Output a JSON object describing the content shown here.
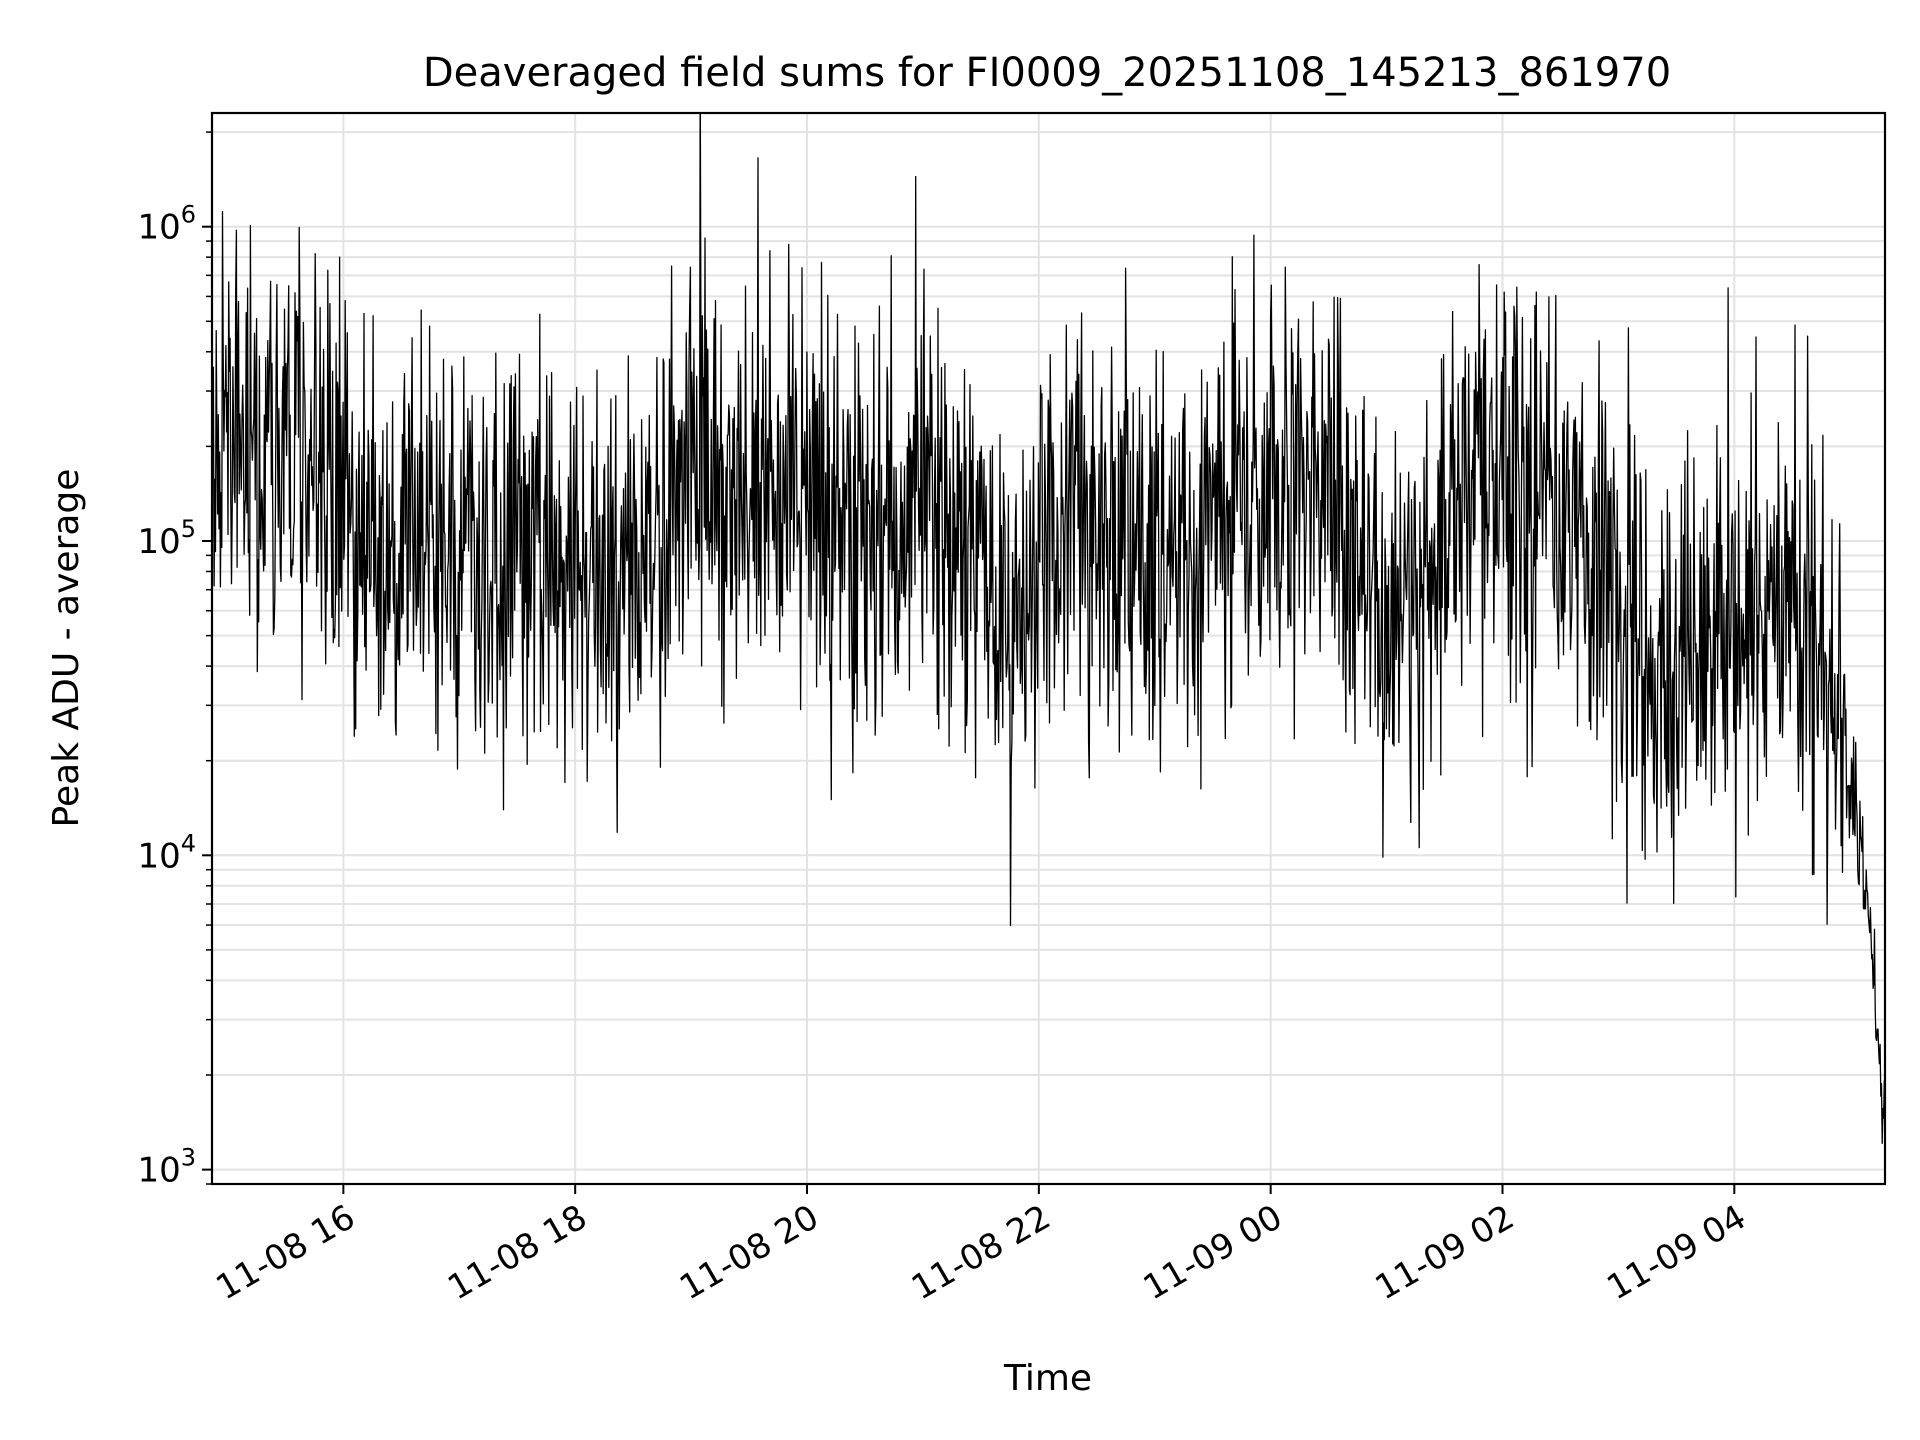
{
  "chart_data": {
    "type": "line",
    "title": "Deaveraged field sums for FI0009_20251108_145213_861970",
    "xlabel": "Time",
    "ylabel": "Peak ADU - average",
    "yscale": "log",
    "ylim": [
      900,
      2300000
    ],
    "xlim": [
      "2025-11-08 14:52",
      "2025-11-09 05:18"
    ],
    "grid": true,
    "line_color": "#000000",
    "x_ticks": [
      {
        "time": "2025-11-08 16:00",
        "label": "11-08 16"
      },
      {
        "time": "2025-11-08 18:00",
        "label": "11-08 18"
      },
      {
        "time": "2025-11-08 20:00",
        "label": "11-08 20"
      },
      {
        "time": "2025-11-08 22:00",
        "label": "11-08 22"
      },
      {
        "time": "2025-11-09 00:00",
        "label": "11-09 00"
      },
      {
        "time": "2025-11-09 02:00",
        "label": "11-09 02"
      },
      {
        "time": "2025-11-09 04:00",
        "label": "11-09 04"
      }
    ],
    "y_ticks": [
      {
        "value": 1000,
        "base": "10",
        "exp": "3"
      },
      {
        "value": 10000,
        "base": "10",
        "exp": "4"
      },
      {
        "value": 100000,
        "base": "10",
        "exp": "5"
      },
      {
        "value": 1000000,
        "base": "10",
        "exp": "6"
      }
    ],
    "series": [
      {
        "noise_level": 0.55,
        "trend": [
          {
            "time": "2025-11-08 14:52",
            "value": 250000
          },
          {
            "time": "2025-11-08 15:40",
            "value": 180000
          },
          {
            "time": "2025-11-08 16:30",
            "value": 90000
          },
          {
            "time": "2025-11-08 17:30",
            "value": 90000
          },
          {
            "time": "2025-11-08 18:30",
            "value": 70000
          },
          {
            "time": "2025-11-08 19:00",
            "value": 180000
          },
          {
            "time": "2025-11-08 20:00",
            "value": 130000
          },
          {
            "time": "2025-11-08 20:30",
            "value": 90000
          },
          {
            "time": "2025-11-08 21:10",
            "value": 150000
          },
          {
            "time": "2025-11-08 21:45",
            "value": 45000
          },
          {
            "time": "2025-11-08 22:15",
            "value": 130000
          },
          {
            "time": "2025-11-08 23:00",
            "value": 90000
          },
          {
            "time": "2025-11-09 00:00",
            "value": 150000
          },
          {
            "time": "2025-11-09 00:40",
            "value": 120000
          },
          {
            "time": "2025-11-09 01:00",
            "value": 50000
          },
          {
            "time": "2025-11-09 01:50",
            "value": 150000
          },
          {
            "time": "2025-11-09 02:40",
            "value": 110000
          },
          {
            "time": "2025-11-09 03:20",
            "value": 30000
          },
          {
            "time": "2025-11-09 03:50",
            "value": 60000
          },
          {
            "time": "2025-11-09 04:40",
            "value": 50000
          },
          {
            "time": "2025-11-09 04:58",
            "value": 25000
          },
          {
            "time": "2025-11-09 05:10",
            "value": 6000
          },
          {
            "time": "2025-11-09 05:18",
            "value": 1300
          }
        ]
      }
    ]
  }
}
